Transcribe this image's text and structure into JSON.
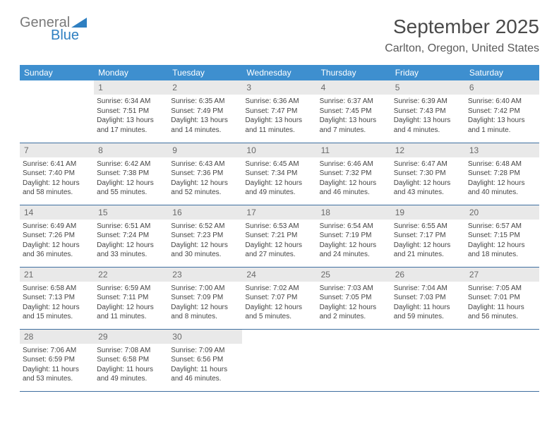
{
  "logo": {
    "text1": "General",
    "text2": "Blue"
  },
  "header": {
    "title": "September 2025",
    "location": "Carlton, Oregon, United States"
  },
  "style": {
    "header_bg": "#3e8fcf",
    "header_fg": "#ffffff",
    "daynum_bg": "#e9e9e9",
    "daynum_fg": "#6a6a6a",
    "border_color": "#3e6fa0",
    "body_text_color": "#444444",
    "title_color": "#4a4a4a",
    "loc_color": "#5a5a5a",
    "logo_gray": "#7a7a7a",
    "logo_blue": "#2e7fc1",
    "page_bg": "#ffffff",
    "header_fontsize": 12,
    "daynum_fontsize": 12,
    "body_fontsize": 10,
    "title_fontsize": 28,
    "loc_fontsize": 16
  },
  "weekdays": [
    "Sunday",
    "Monday",
    "Tuesday",
    "Wednesday",
    "Thursday",
    "Friday",
    "Saturday"
  ],
  "grid": [
    [
      {
        "n": "",
        "l": []
      },
      {
        "n": "1",
        "l": [
          "Sunrise: 6:34 AM",
          "Sunset: 7:51 PM",
          "Daylight: 13 hours",
          "and 17 minutes."
        ]
      },
      {
        "n": "2",
        "l": [
          "Sunrise: 6:35 AM",
          "Sunset: 7:49 PM",
          "Daylight: 13 hours",
          "and 14 minutes."
        ]
      },
      {
        "n": "3",
        "l": [
          "Sunrise: 6:36 AM",
          "Sunset: 7:47 PM",
          "Daylight: 13 hours",
          "and 11 minutes."
        ]
      },
      {
        "n": "4",
        "l": [
          "Sunrise: 6:37 AM",
          "Sunset: 7:45 PM",
          "Daylight: 13 hours",
          "and 7 minutes."
        ]
      },
      {
        "n": "5",
        "l": [
          "Sunrise: 6:39 AM",
          "Sunset: 7:43 PM",
          "Daylight: 13 hours",
          "and 4 minutes."
        ]
      },
      {
        "n": "6",
        "l": [
          "Sunrise: 6:40 AM",
          "Sunset: 7:42 PM",
          "Daylight: 13 hours",
          "and 1 minute."
        ]
      }
    ],
    [
      {
        "n": "7",
        "l": [
          "Sunrise: 6:41 AM",
          "Sunset: 7:40 PM",
          "Daylight: 12 hours",
          "and 58 minutes."
        ]
      },
      {
        "n": "8",
        "l": [
          "Sunrise: 6:42 AM",
          "Sunset: 7:38 PM",
          "Daylight: 12 hours",
          "and 55 minutes."
        ]
      },
      {
        "n": "9",
        "l": [
          "Sunrise: 6:43 AM",
          "Sunset: 7:36 PM",
          "Daylight: 12 hours",
          "and 52 minutes."
        ]
      },
      {
        "n": "10",
        "l": [
          "Sunrise: 6:45 AM",
          "Sunset: 7:34 PM",
          "Daylight: 12 hours",
          "and 49 minutes."
        ]
      },
      {
        "n": "11",
        "l": [
          "Sunrise: 6:46 AM",
          "Sunset: 7:32 PM",
          "Daylight: 12 hours",
          "and 46 minutes."
        ]
      },
      {
        "n": "12",
        "l": [
          "Sunrise: 6:47 AM",
          "Sunset: 7:30 PM",
          "Daylight: 12 hours",
          "and 43 minutes."
        ]
      },
      {
        "n": "13",
        "l": [
          "Sunrise: 6:48 AM",
          "Sunset: 7:28 PM",
          "Daylight: 12 hours",
          "and 40 minutes."
        ]
      }
    ],
    [
      {
        "n": "14",
        "l": [
          "Sunrise: 6:49 AM",
          "Sunset: 7:26 PM",
          "Daylight: 12 hours",
          "and 36 minutes."
        ]
      },
      {
        "n": "15",
        "l": [
          "Sunrise: 6:51 AM",
          "Sunset: 7:24 PM",
          "Daylight: 12 hours",
          "and 33 minutes."
        ]
      },
      {
        "n": "16",
        "l": [
          "Sunrise: 6:52 AM",
          "Sunset: 7:23 PM",
          "Daylight: 12 hours",
          "and 30 minutes."
        ]
      },
      {
        "n": "17",
        "l": [
          "Sunrise: 6:53 AM",
          "Sunset: 7:21 PM",
          "Daylight: 12 hours",
          "and 27 minutes."
        ]
      },
      {
        "n": "18",
        "l": [
          "Sunrise: 6:54 AM",
          "Sunset: 7:19 PM",
          "Daylight: 12 hours",
          "and 24 minutes."
        ]
      },
      {
        "n": "19",
        "l": [
          "Sunrise: 6:55 AM",
          "Sunset: 7:17 PM",
          "Daylight: 12 hours",
          "and 21 minutes."
        ]
      },
      {
        "n": "20",
        "l": [
          "Sunrise: 6:57 AM",
          "Sunset: 7:15 PM",
          "Daylight: 12 hours",
          "and 18 minutes."
        ]
      }
    ],
    [
      {
        "n": "21",
        "l": [
          "Sunrise: 6:58 AM",
          "Sunset: 7:13 PM",
          "Daylight: 12 hours",
          "and 15 minutes."
        ]
      },
      {
        "n": "22",
        "l": [
          "Sunrise: 6:59 AM",
          "Sunset: 7:11 PM",
          "Daylight: 12 hours",
          "and 11 minutes."
        ]
      },
      {
        "n": "23",
        "l": [
          "Sunrise: 7:00 AM",
          "Sunset: 7:09 PM",
          "Daylight: 12 hours",
          "and 8 minutes."
        ]
      },
      {
        "n": "24",
        "l": [
          "Sunrise: 7:02 AM",
          "Sunset: 7:07 PM",
          "Daylight: 12 hours",
          "and 5 minutes."
        ]
      },
      {
        "n": "25",
        "l": [
          "Sunrise: 7:03 AM",
          "Sunset: 7:05 PM",
          "Daylight: 12 hours",
          "and 2 minutes."
        ]
      },
      {
        "n": "26",
        "l": [
          "Sunrise: 7:04 AM",
          "Sunset: 7:03 PM",
          "Daylight: 11 hours",
          "and 59 minutes."
        ]
      },
      {
        "n": "27",
        "l": [
          "Sunrise: 7:05 AM",
          "Sunset: 7:01 PM",
          "Daylight: 11 hours",
          "and 56 minutes."
        ]
      }
    ],
    [
      {
        "n": "28",
        "l": [
          "Sunrise: 7:06 AM",
          "Sunset: 6:59 PM",
          "Daylight: 11 hours",
          "and 53 minutes."
        ]
      },
      {
        "n": "29",
        "l": [
          "Sunrise: 7:08 AM",
          "Sunset: 6:58 PM",
          "Daylight: 11 hours",
          "and 49 minutes."
        ]
      },
      {
        "n": "30",
        "l": [
          "Sunrise: 7:09 AM",
          "Sunset: 6:56 PM",
          "Daylight: 11 hours",
          "and 46 minutes."
        ]
      },
      {
        "n": "",
        "l": []
      },
      {
        "n": "",
        "l": []
      },
      {
        "n": "",
        "l": []
      },
      {
        "n": "",
        "l": []
      }
    ]
  ]
}
